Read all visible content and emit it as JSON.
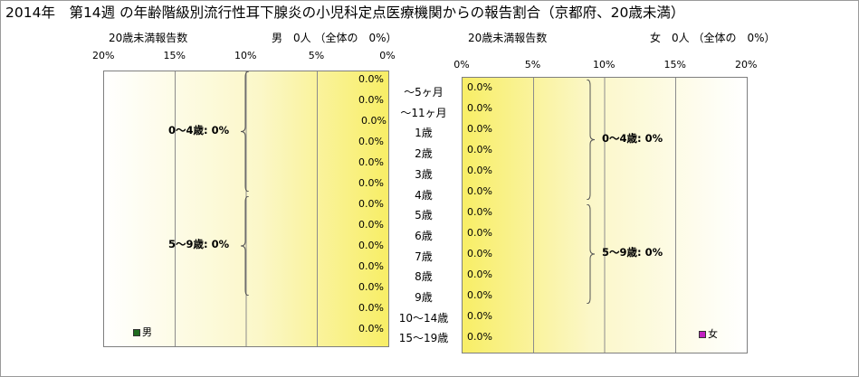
{
  "title": "2014年　第14週 の年齢階級別流行性耳下腺炎の小児科定点医療機関からの報告割合（京都府、20歳未満）",
  "chart_data": [
    {
      "type": "bar",
      "orientation": "horizontal",
      "direction": "right-to-left",
      "subtitle_left": "20歳未満報告数",
      "subtitle_right": "男　0人 （全体の　0%）",
      "xlim": [
        0,
        20
      ],
      "ticks": [
        "20%",
        "15%",
        "10%",
        "5%",
        "0%"
      ],
      "categories": [
        "～5ヶ月",
        "～11ヶ月",
        "1歳",
        "2歳",
        "3歳",
        "4歳",
        "5歳",
        "6歳",
        "7歳",
        "8歳",
        "9歳",
        "10～14歳",
        "15～19歳"
      ],
      "series": [
        {
          "name": "男",
          "color": "#1f6b1f",
          "values": [
            0,
            0,
            0,
            0,
            0,
            0,
            0,
            0,
            0,
            0,
            0,
            0,
            0
          ],
          "labels": [
            "0.0%",
            "0.0%",
            "0.0%",
            "0.0%",
            "0.0%",
            "0.0%",
            "0.0%",
            "0.0%",
            "0.0%",
            "0.0%",
            "0.0%",
            "0.0%",
            "0.0%"
          ]
        }
      ],
      "groups": [
        {
          "label": "0～4歳: 0%",
          "from": 0,
          "to": 5
        },
        {
          "label": "5～9歳: 0%",
          "from": 6,
          "to": 10
        }
      ],
      "legend": "男"
    },
    {
      "type": "bar",
      "orientation": "horizontal",
      "direction": "left-to-right",
      "subtitle_left": "20歳未満報告数",
      "subtitle_right": "女　0人 （全体の　0%）",
      "xlim": [
        0,
        20
      ],
      "ticks": [
        "0%",
        "5%",
        "10%",
        "15%",
        "20%"
      ],
      "categories": [
        "～5ヶ月",
        "～11ヶ月",
        "1歳",
        "2歳",
        "3歳",
        "4歳",
        "5歳",
        "6歳",
        "7歳",
        "8歳",
        "9歳",
        "10～14歳",
        "15～19歳"
      ],
      "series": [
        {
          "name": "女",
          "color": "#c020c0",
          "values": [
            0,
            0,
            0,
            0,
            0,
            0,
            0,
            0,
            0,
            0,
            0,
            0,
            0
          ],
          "labels": [
            "0.0%",
            "0.0%",
            "0.0%",
            "0.0%",
            "0.0%",
            "0.0%",
            "0.0%",
            "0.0%",
            "0.0%",
            "0.0%",
            "0.0%",
            "0.0%",
            "0.0%"
          ]
        }
      ],
      "groups": [
        {
          "label": "0～4歳: 0%",
          "from": 0,
          "to": 5
        },
        {
          "label": "5～9歳: 0%",
          "from": 6,
          "to": 10
        }
      ],
      "legend": "女"
    }
  ]
}
